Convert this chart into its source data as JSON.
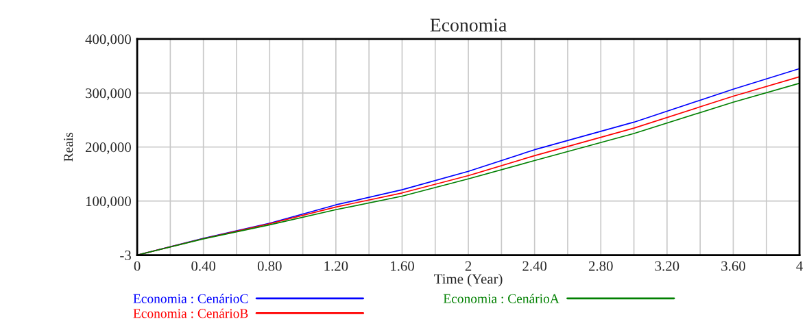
{
  "chart_data": {
    "type": "line",
    "title": "Economia",
    "xlabel": "Time (Year)",
    "ylabel": "Reais",
    "x": [
      0,
      0.4,
      0.8,
      1.2,
      1.6,
      2,
      2.4,
      3,
      3.6,
      4
    ],
    "series": [
      {
        "name": "Economia : CenárioC",
        "color": "#0000ff",
        "values": [
          0,
          31000,
          59000,
          93000,
          121000,
          155000,
          195000,
          246000,
          307000,
          345000
        ]
      },
      {
        "name": "Economia : CenárioB",
        "color": "#ff0000",
        "values": [
          0,
          30500,
          58000,
          89000,
          115000,
          147000,
          184000,
          235000,
          294000,
          330000
        ]
      },
      {
        "name": "Economia : CenárioA",
        "color": "#008000",
        "values": [
          0,
          30000,
          56000,
          84000,
          109000,
          141000,
          175000,
          225000,
          283000,
          318000
        ]
      }
    ],
    "xlim": [
      0,
      4
    ],
    "xticks": [
      0,
      {
        "value": 0.2,
        "label": null
      },
      {
        "value": 0.4,
        "label": "0.40"
      },
      {
        "value": 0.6,
        "label": null
      },
      {
        "value": 0.8,
        "label": "0.80"
      },
      {
        "value": 1.0,
        "label": null
      },
      {
        "value": 1.2,
        "label": "1.20"
      },
      {
        "value": 1.4,
        "label": null
      },
      {
        "value": 1.6,
        "label": "1.60"
      },
      {
        "value": 1.8,
        "label": null
      },
      2,
      {
        "value": 2.2,
        "label": null
      },
      {
        "value": 2.4,
        "label": "2.40"
      },
      {
        "value": 2.6,
        "label": null
      },
      {
        "value": 2.8,
        "label": "2.80"
      },
      {
        "value": 3.0,
        "label": null
      },
      {
        "value": 3.2,
        "label": "3.20"
      },
      {
        "value": 3.4,
        "label": null
      },
      {
        "value": 3.6,
        "label": "3.60"
      },
      {
        "value": 3.8,
        "label": null
      },
      4
    ],
    "ylim": [
      -3,
      400000
    ],
    "yticks": [
      -3,
      {
        "value": 100000,
        "label": "100,000"
      },
      {
        "value": 200000,
        "label": "200,000"
      },
      {
        "value": 300000,
        "label": "300,000"
      },
      {
        "value": 400000,
        "label": "400,000"
      }
    ],
    "grid": true,
    "legend": "bottom",
    "marker": "none",
    "line_style": "solid"
  }
}
